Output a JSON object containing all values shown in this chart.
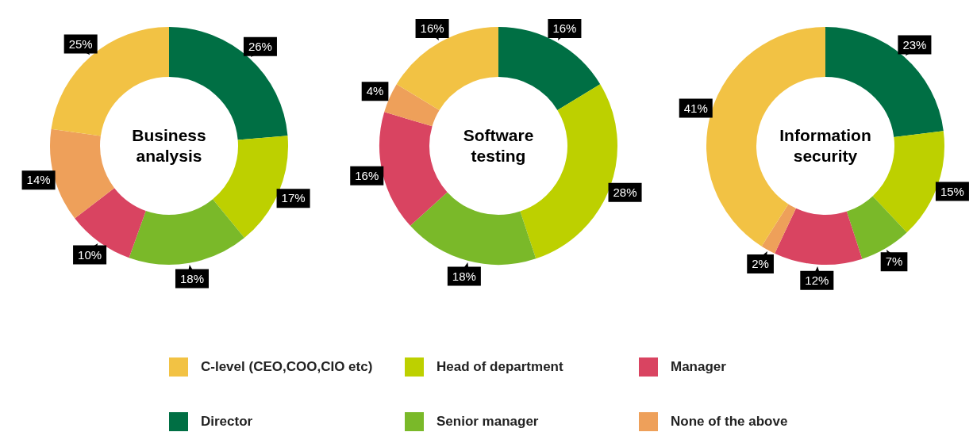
{
  "chart_data": [
    {
      "type": "donut",
      "title": "Business analysis",
      "categories": [
        "Director",
        "Head of department",
        "Senior manager",
        "Manager",
        "None of the above",
        "C-level (CEO,COO,CIO etc)"
      ],
      "values": [
        26,
        17,
        18,
        10,
        14,
        25
      ],
      "value_labels": [
        "26%",
        "17%",
        "18%",
        "10%",
        "14%",
        "25%"
      ],
      "colors": [
        "#006f44",
        "#bdd000",
        "#7ab929",
        "#d94461",
        "#eea05a",
        "#f2c244"
      ],
      "legend": "bottom"
    },
    {
      "type": "donut",
      "title": "Software testing",
      "categories": [
        null,
        null,
        null,
        null,
        null,
        null
      ],
      "values": [
        16,
        28,
        18,
        16,
        4,
        16
      ],
      "value_labels": [
        "16%",
        "28%",
        "18%",
        "16%",
        "4%",
        "16%"
      ],
      "colors": [
        "#006f44",
        "#bdd000",
        "#7ab929",
        "#d94461",
        "#eea05a",
        "#f2c244"
      ]
    },
    {
      "type": "donut",
      "title": "Information security",
      "categories": [
        null,
        null,
        null,
        null,
        null,
        null
      ],
      "values": [
        23,
        15,
        7,
        12,
        2,
        41
      ],
      "value_labels": [
        "23%",
        "15%",
        "7%",
        "12%",
        "2%",
        "41%"
      ],
      "colors": [
        "#006f44",
        "#bdd000",
        "#7ab929",
        "#d94461",
        "#eea05a",
        "#f2c244"
      ]
    }
  ]
}
